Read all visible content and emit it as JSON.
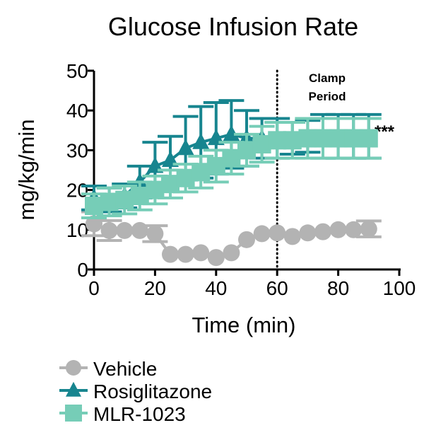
{
  "chart_data": {
    "type": "line",
    "title": "Glucose Infusion Rate",
    "xlabel": "Time (min)",
    "ylabel": "mg/kg/min",
    "xlim": [
      0,
      100
    ],
    "ylim": [
      0,
      50
    ],
    "xticks": [
      0,
      20,
      40,
      60,
      80,
      100
    ],
    "yticks": [
      0,
      10,
      20,
      30,
      40,
      50
    ],
    "grid": false,
    "legend_placement": "bottom-left",
    "x": [
      0,
      5,
      10,
      15,
      20,
      25,
      30,
      35,
      40,
      45,
      50,
      55,
      60,
      65,
      70,
      75,
      80,
      85,
      90
    ],
    "series": [
      {
        "name": "Vehicle",
        "marker": "circle",
        "color": "#b3b3b3",
        "values": [
          11.5,
          9.8,
          9.8,
          9.8,
          9,
          3.8,
          3.8,
          4.2,
          3,
          4.2,
          7.5,
          9,
          9.2,
          8.3,
          9.2,
          9.5,
          10,
          10,
          10.2
        ],
        "errors": [
          3,
          2.5,
          0,
          0,
          2,
          0,
          0,
          0,
          0,
          0,
          0,
          0,
          0,
          0,
          0,
          0,
          0,
          0,
          2
        ]
      },
      {
        "name": "Rosiglitazone",
        "marker": "triangle",
        "color": "#17858f",
        "values": [
          18,
          17.5,
          18.5,
          22,
          26,
          27.5,
          30.5,
          32,
          33,
          34,
          33,
          33,
          33,
          33,
          33.5,
          33.5,
          33.5,
          33.5,
          33.5
        ],
        "errors": [
          3,
          3,
          3,
          4,
          6,
          6,
          8,
          9,
          9,
          8.5,
          7,
          5,
          5,
          4,
          4,
          5.5,
          5.5,
          5.5,
          5.5
        ]
      },
      {
        "name": "MLR-1023",
        "marker": "square",
        "color": "#76cdb7",
        "values": [
          16,
          17,
          17.5,
          18.5,
          20,
          21.5,
          23,
          24.5,
          26,
          28,
          30,
          31.5,
          32.5,
          32.5,
          33,
          33,
          33,
          33,
          33
        ],
        "errors": [
          3,
          3.5,
          3.5,
          3.5,
          3.5,
          3.5,
          3.5,
          4,
          4,
          4,
          4,
          4.5,
          4.5,
          4.5,
          5,
          5,
          5,
          5,
          5
        ]
      }
    ],
    "annotations": {
      "clamp_line_x": 60,
      "clamp_label_1": "Clamp",
      "clamp_label_2": "Period",
      "significance": "***"
    }
  }
}
